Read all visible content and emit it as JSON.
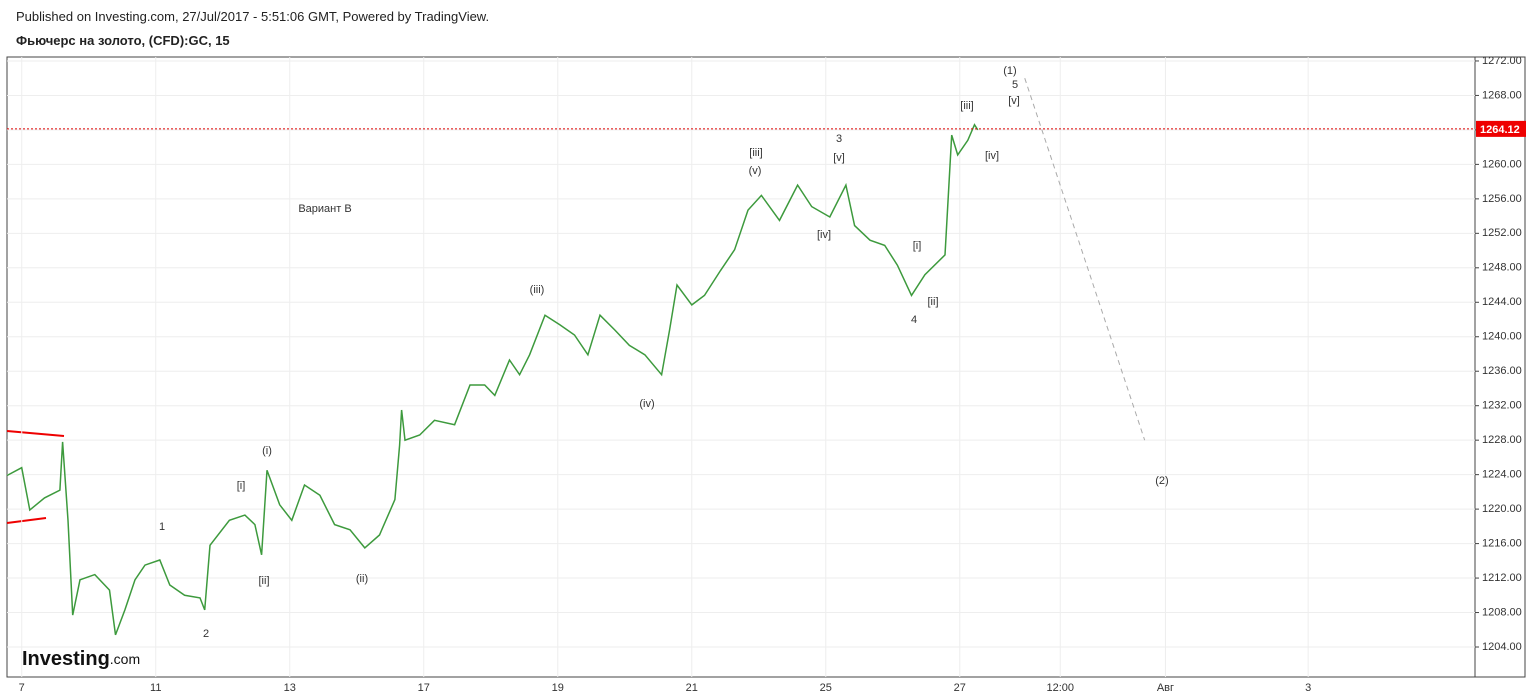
{
  "header": {
    "published": "Published on Investing.com, 27/Jul/2017 - 5:51:06 GMT, Powered by TradingView.",
    "title": "Фьючерс на золото, (CFD):GC, 15"
  },
  "logo": {
    "brand": "Investing",
    "suffix": ".com"
  },
  "chart_data": {
    "type": "line",
    "color": "#3d9a3d",
    "grid": true,
    "x": [
      -0.22,
      0,
      0.12,
      0.34,
      0.57,
      0.61,
      0.69,
      0.76,
      0.87,
      1.09,
      1.31,
      1.4,
      1.54,
      1.69,
      1.84,
      2.06,
      2.21,
      2.43,
      2.66,
      2.73,
      2.81,
      3.1,
      3.33,
      3.48,
      3.58,
      3.66,
      3.85,
      4.03,
      4.22,
      4.45,
      4.67,
      4.9,
      5.12,
      5.34,
      5.57,
      5.64,
      5.67,
      5.72,
      5.94,
      6.16,
      6.46,
      6.69,
      6.91,
      7.06,
      7.28,
      7.43,
      7.58,
      7.81,
      8.03,
      8.25,
      8.45,
      8.63,
      8.85,
      9.07,
      9.3,
      9.55,
      9.67,
      9.78,
      10,
      10.19,
      10.43,
      10.64,
      10.84,
      11.04,
      11.31,
      11.58,
      11.79,
      12.06,
      12.3,
      12.43,
      12.66,
      12.88,
      13.07,
      13.28,
      13.48,
      13.78,
      13.88,
      13.97,
      14.12,
      14.22,
      14.27
    ],
    "values": [
      1223.9,
      1224.8,
      1219.9,
      1221.3,
      1222.2,
      1227.8,
      1218.7,
      1207.7,
      1211.8,
      1212.4,
      1210.6,
      1205.4,
      1208.3,
      1211.8,
      1213.5,
      1214.1,
      1211.2,
      1210.0,
      1209.7,
      1208.3,
      1215.8,
      1218.7,
      1219.3,
      1218.2,
      1214.7,
      1224.5,
      1220.5,
      1218.7,
      1222.8,
      1221.6,
      1218.2,
      1217.6,
      1215.5,
      1217.0,
      1221.1,
      1227.4,
      1231.5,
      1228.0,
      1228.6,
      1230.3,
      1229.8,
      1234.4,
      1234.4,
      1233.2,
      1237.3,
      1235.6,
      1237.9,
      1242.5,
      1241.4,
      1240.2,
      1237.9,
      1242.5,
      1240.8,
      1239.0,
      1237.9,
      1235.6,
      1240.8,
      1246.0,
      1243.7,
      1244.8,
      1247.7,
      1250.1,
      1254.7,
      1256.4,
      1253.5,
      1257.6,
      1255.1,
      1253.9,
      1257.6,
      1252.9,
      1251.2,
      1250.6,
      1248.3,
      1244.8,
      1247.2,
      1249.5,
      1263.4,
      1261.1,
      1262.8,
      1264.6,
      1264.0
    ],
    "last_price": 1264.12,
    "projection": {
      "x": [
        14.97,
        16.76
      ],
      "values": [
        1270.0,
        1228.0
      ]
    },
    "xlim": [
      -0.22,
      21.69
    ],
    "ylim": [
      1200.52,
      1272.46
    ],
    "xticks": [
      {
        "value": 0,
        "label": "7"
      },
      {
        "value": 2,
        "label": "11"
      },
      {
        "value": 4,
        "label": "13"
      },
      {
        "value": 6,
        "label": "17"
      },
      {
        "value": 8,
        "label": "19"
      },
      {
        "value": 10,
        "label": "21"
      },
      {
        "value": 12,
        "label": "25"
      },
      {
        "value": 14,
        "label": "27"
      },
      {
        "value": 15.5,
        "label": "12:00"
      },
      {
        "value": 17.07,
        "label": "Авг"
      },
      {
        "value": 19.2,
        "label": "3"
      }
    ],
    "yticks": [
      {
        "value": 1204,
        "label": "1204.00"
      },
      {
        "value": 1208,
        "label": "1208.00"
      },
      {
        "value": 1212,
        "label": "1212.00"
      },
      {
        "value": 1216,
        "label": "1216.00"
      },
      {
        "value": 1220,
        "label": "1220.00"
      },
      {
        "value": 1224,
        "label": "1224.00"
      },
      {
        "value": 1228,
        "label": "1228.00"
      },
      {
        "value": 1232,
        "label": "1232.00"
      },
      {
        "value": 1236,
        "label": "1236.00"
      },
      {
        "value": 1240,
        "label": "1240.00"
      },
      {
        "value": 1244,
        "label": "1244.00"
      },
      {
        "value": 1248,
        "label": "1248.00"
      },
      {
        "value": 1252,
        "label": "1252.00"
      },
      {
        "value": 1256,
        "label": "1256.00"
      },
      {
        "value": 1260,
        "label": "1260.00"
      },
      {
        "value": 1264,
        "label": "1264.00"
      },
      {
        "value": 1268,
        "label": "1268.00"
      },
      {
        "value": 1272,
        "label": "1272.00"
      }
    ],
    "annotations": [
      "(1)",
      "5",
      "[v]",
      "[iii]",
      "[iv]",
      "3",
      "[v]",
      "[iii]",
      "(v)",
      "[iv]",
      "[i]",
      "[ii]",
      "4",
      "(iii)",
      "(iv)",
      "(i)",
      "[i]",
      "1",
      "[ii]",
      "(ii)",
      "2",
      "(2)",
      "Вариант B"
    ]
  }
}
